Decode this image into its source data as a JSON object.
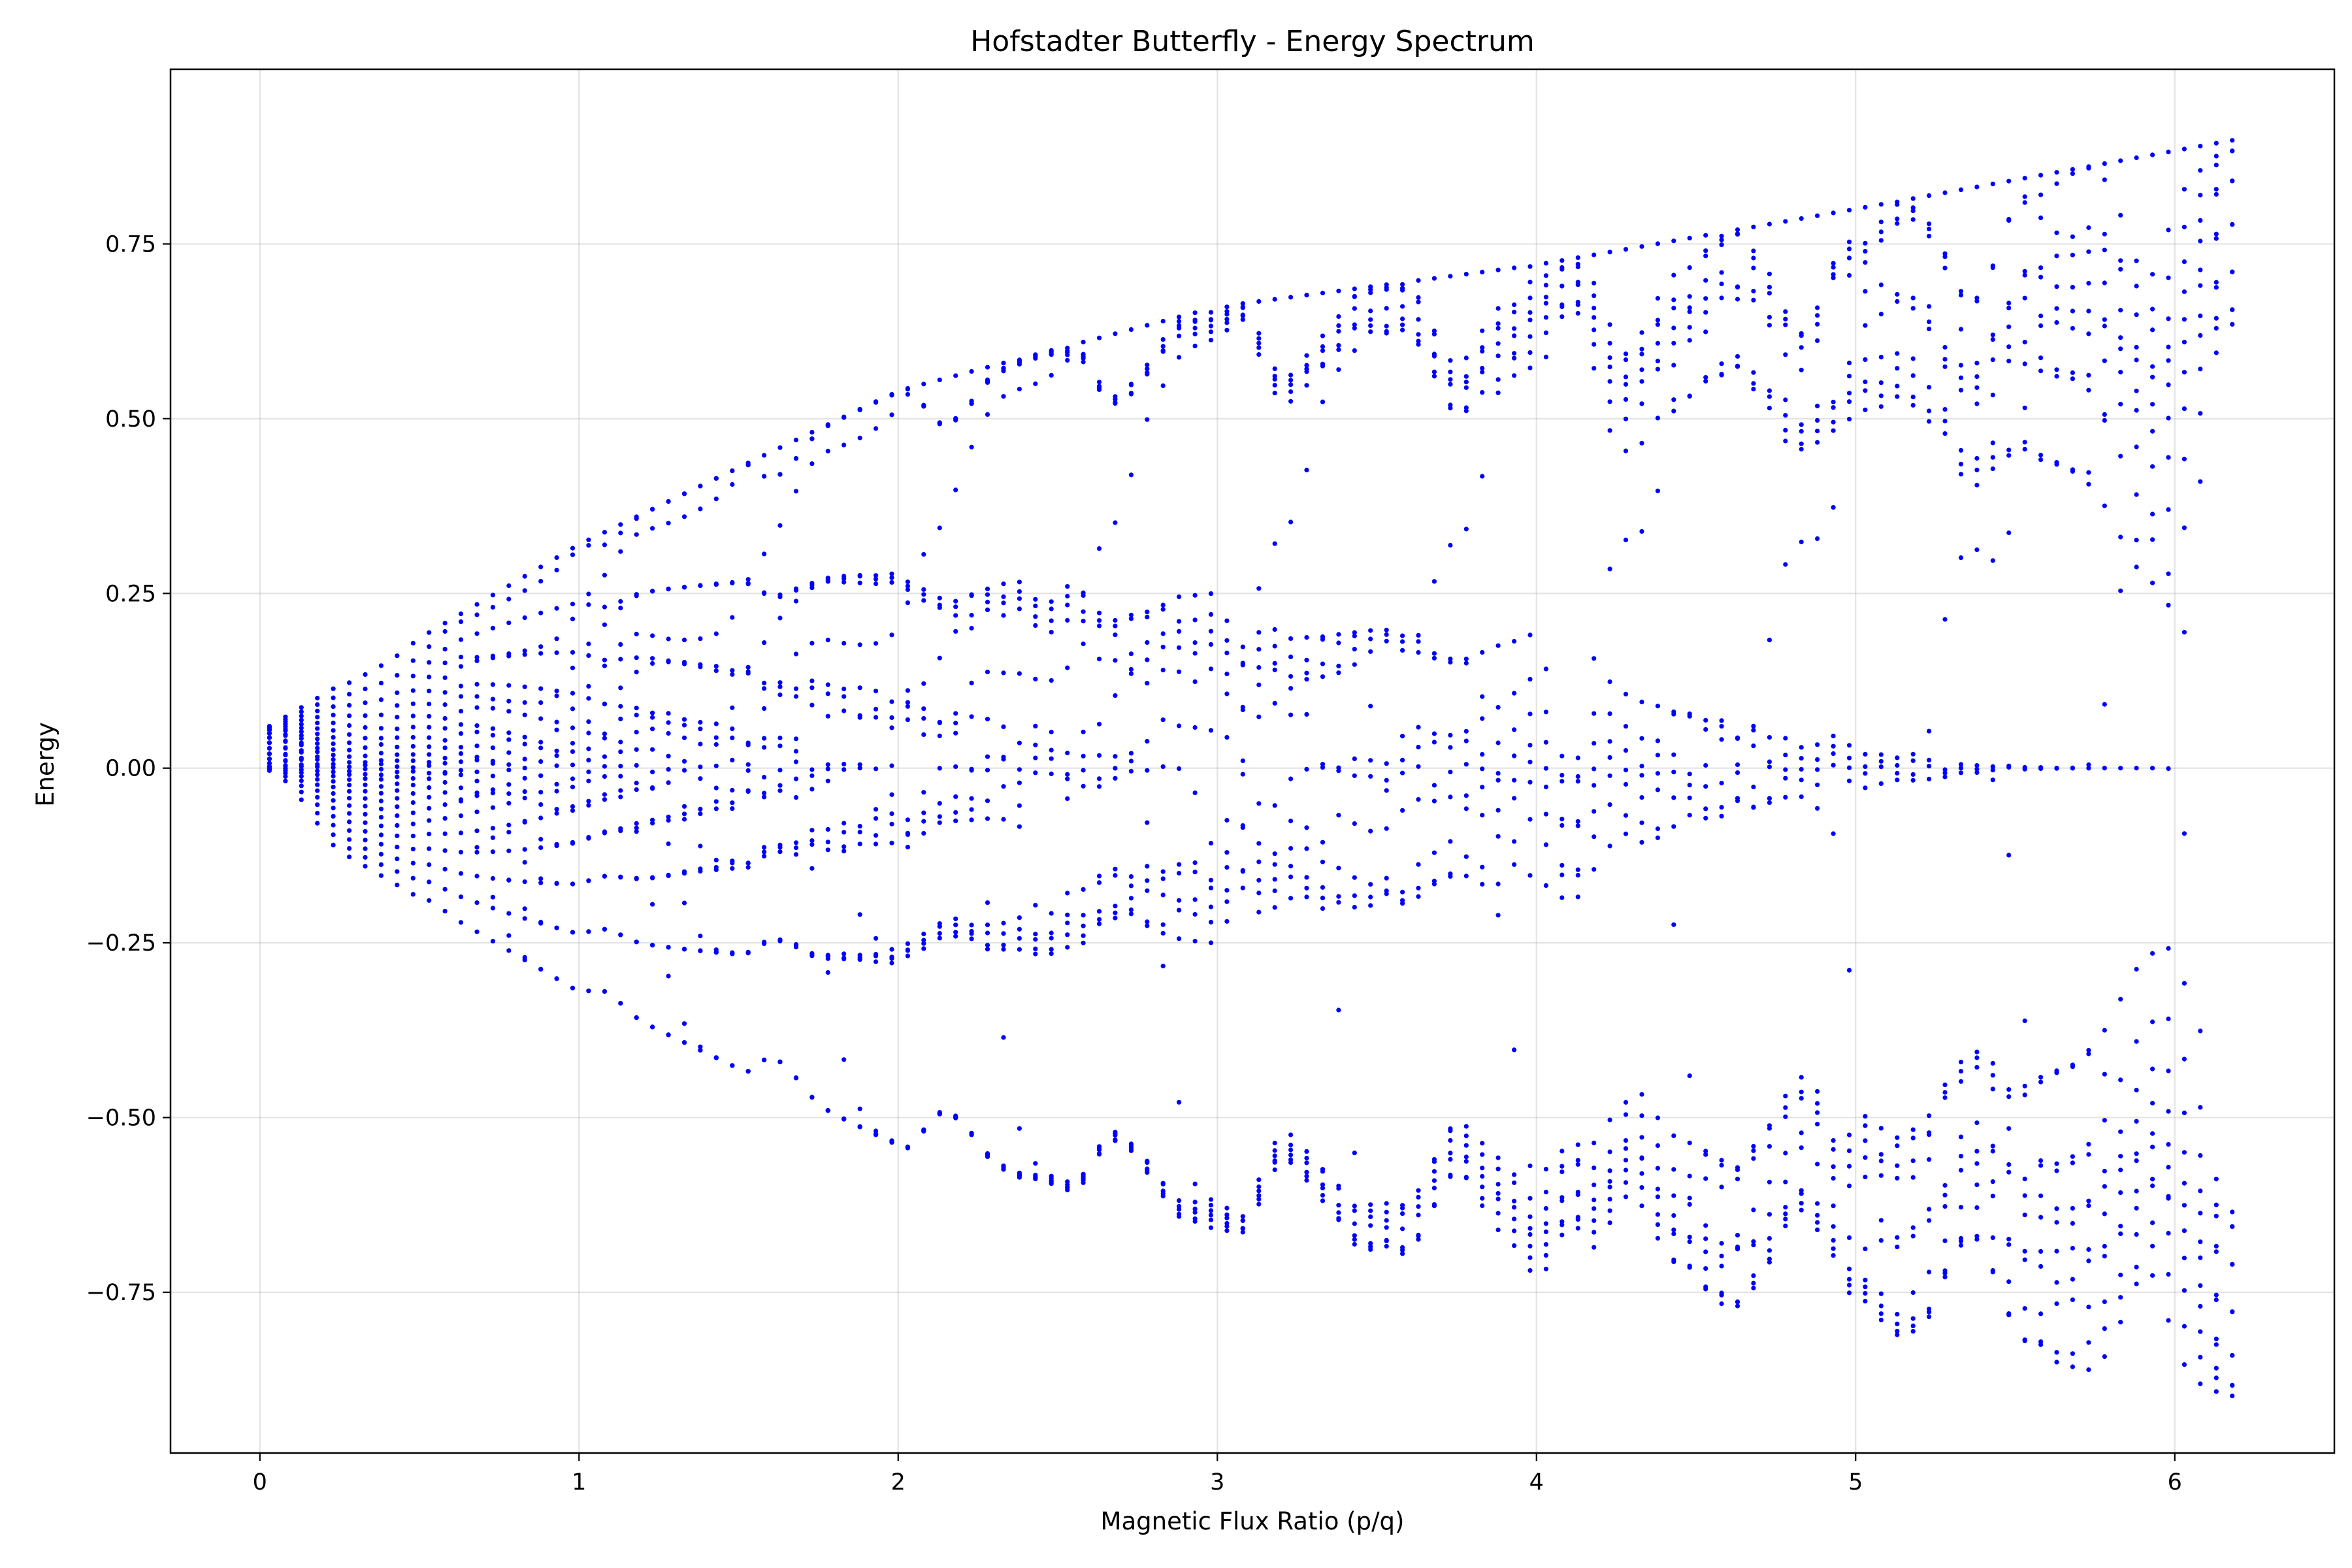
{
  "chart_data": {
    "type": "scatter",
    "title": "Hofstadter Butterfly - Energy Spectrum",
    "xlabel": "Magnetic Flux Ratio (p/q)",
    "ylabel": "Energy",
    "xlim": [
      -0.28,
      6.5
    ],
    "ylim": [
      -0.98,
      1.0
    ],
    "x_ticks": [
      {
        "value": 0,
        "label": "0"
      },
      {
        "value": 1,
        "label": "1"
      },
      {
        "value": 2,
        "label": "2"
      },
      {
        "value": 3,
        "label": "3"
      },
      {
        "value": 4,
        "label": "4"
      },
      {
        "value": 5,
        "label": "5"
      },
      {
        "value": 6,
        "label": "6"
      }
    ],
    "y_ticks": [
      {
        "value": 0.75,
        "label": "0.75"
      },
      {
        "value": 0.5,
        "label": "0.50"
      },
      {
        "value": 0.25,
        "label": "0.25"
      },
      {
        "value": 0.0,
        "label": "0.00"
      },
      {
        "value": -0.25,
        "label": "−0.25"
      },
      {
        "value": -0.5,
        "label": "−0.50"
      },
      {
        "value": -0.75,
        "label": "−0.75"
      }
    ],
    "grid": true,
    "marker_color": "#0000ff",
    "series": [
      {
        "points_note_x_range": [
          0.03,
          6.2
        ],
        "x_step": 0.05,
        "envelope": [
          {
            "x": 0.03,
            "upper": 0.06,
            "lower": -0.06
          },
          {
            "x": 1.0,
            "upper": 0.32,
            "lower": -0.32
          },
          {
            "x": 2.0,
            "upper": 0.54,
            "lower": -0.54
          },
          {
            "x": 3.0,
            "upper": 0.66,
            "lower": -0.66
          },
          {
            "x": 4.0,
            "upper": 0.72,
            "lower": -0.72
          },
          {
            "x": 5.0,
            "upper": 0.8,
            "lower": -0.8
          },
          {
            "x": 6.2,
            "upper": 0.9,
            "lower": -0.9
          }
        ]
      }
    ]
  }
}
